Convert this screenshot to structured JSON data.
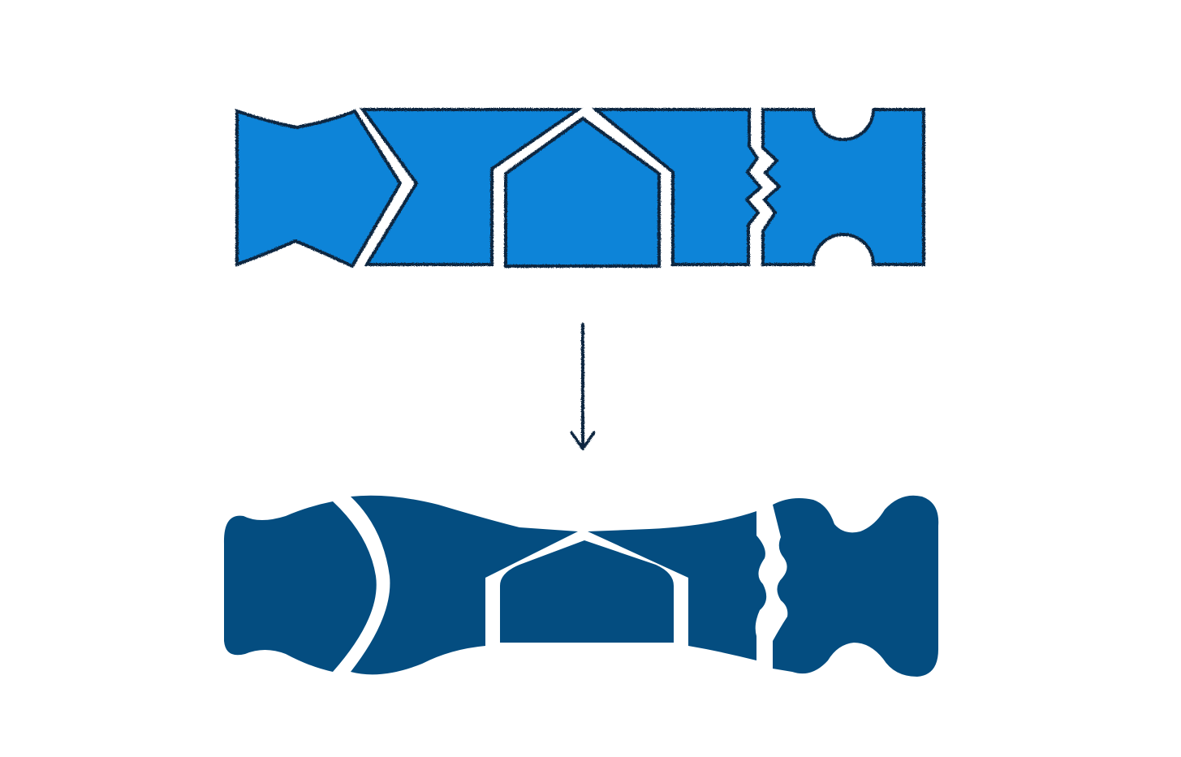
{
  "diagram": {
    "top_strip": {
      "description_visible": false,
      "piece_count": 5,
      "fill": "#0a84d8",
      "outline": "#0b2540"
    },
    "arrow": {
      "direction": "down",
      "color": "#0b2540"
    },
    "bottom_strip": {
      "piece_count": 5,
      "fill": "#044d80"
    },
    "background": "#ffffff",
    "gap_color": "#ffffff"
  }
}
